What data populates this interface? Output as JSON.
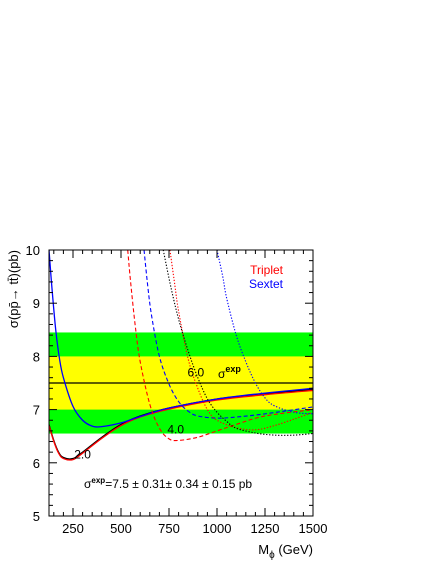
{
  "chart_data": {
    "type": "line",
    "xlabel": "M",
    "xlabel_sub": "ϕ",
    "xlabel_unit": " (GeV)",
    "ylabel": "σ(pp̄→ tt̄)(pb)",
    "xlim": [
      125,
      1500
    ],
    "ylim": [
      5,
      10
    ],
    "x_ticks": [
      250,
      500,
      750,
      1000,
      1250,
      1500
    ],
    "y_ticks": [
      5,
      6,
      7,
      8,
      9,
      10
    ],
    "grid": false,
    "legend": {
      "placement": "top-right",
      "entries": [
        {
          "label": "Triplet",
          "color": "#ff0000"
        },
        {
          "label": "Sextet",
          "color": "#0000ff"
        }
      ]
    },
    "bands": [
      {
        "from": 6.55,
        "to": 8.45,
        "color": "#00ff00"
      },
      {
        "from": 7.0,
        "to": 8.0,
        "color": "#ffff00"
      }
    ],
    "reference_line": {
      "value": 7.5,
      "color": "#000000",
      "label": "σ",
      "label_sup": "exp"
    },
    "measurement_text": {
      "sigma": "σ",
      "sup": "exp",
      "value": "=7.5 ± 0.31± 0.34 ± 0.15 pb"
    },
    "coupling_labels": [
      {
        "text": "2.0",
        "x": 300,
        "y": 6.08
      },
      {
        "text": "4.0",
        "x": 785,
        "y": 6.55
      },
      {
        "text": "6.0",
        "x": 890,
        "y": 7.62
      }
    ],
    "series": [
      {
        "group": "2.0",
        "color": "#000000",
        "style": "solid",
        "x": [
          125,
          150,
          175,
          200,
          250,
          300,
          400,
          500,
          600,
          750,
          1000,
          1250,
          1500
        ],
        "y": [
          6.72,
          6.42,
          6.2,
          6.1,
          6.08,
          6.2,
          6.48,
          6.72,
          6.88,
          7.03,
          7.2,
          7.3,
          7.38
        ]
      },
      {
        "group": "2.0",
        "color": "#ff0000",
        "style": "solid",
        "x": [
          125,
          150,
          175,
          200,
          250,
          300,
          400,
          500,
          600,
          750,
          1000,
          1250,
          1500
        ],
        "y": [
          6.7,
          6.4,
          6.18,
          6.08,
          6.06,
          6.18,
          6.46,
          6.7,
          6.86,
          7.01,
          7.18,
          7.28,
          7.36
        ]
      },
      {
        "group": "2.0",
        "color": "#0000ff",
        "style": "solid",
        "x": [
          125,
          140,
          160,
          180,
          200,
          250,
          300,
          350,
          400,
          500,
          600,
          750,
          1000,
          1250,
          1500
        ],
        "y": [
          10.0,
          9.3,
          8.5,
          7.95,
          7.6,
          7.06,
          6.8,
          6.69,
          6.68,
          6.75,
          6.87,
          7.03,
          7.2,
          7.31,
          7.4
        ]
      },
      {
        "group": "4.0",
        "color": "#ff0000",
        "style": "dashed",
        "x": [
          535,
          550,
          575,
          600,
          650,
          700,
          750,
          800,
          900,
          1000,
          1100,
          1250,
          1500
        ],
        "y": [
          10.0,
          9.4,
          8.55,
          7.9,
          7.1,
          6.65,
          6.45,
          6.42,
          6.48,
          6.6,
          6.72,
          6.88,
          7.0
        ]
      },
      {
        "group": "4.0",
        "color": "#0000ff",
        "style": "dashed",
        "x": [
          620,
          640,
          660,
          700,
          750,
          800,
          850,
          900,
          1000,
          1100,
          1250,
          1500
        ],
        "y": [
          10.0,
          9.3,
          8.75,
          8.0,
          7.48,
          7.15,
          6.97,
          6.88,
          6.84,
          6.86,
          6.92,
          7.05
        ]
      },
      {
        "group": "6.0",
        "color": "#ff0000",
        "style": "dotted",
        "x": [
          755,
          780,
          800,
          850,
          900,
          950,
          1000,
          1100,
          1200,
          1300,
          1400,
          1500
        ],
        "y": [
          10.0,
          9.35,
          8.85,
          7.95,
          7.4,
          7.0,
          6.8,
          6.66,
          6.62,
          6.7,
          6.82,
          6.95
        ]
      },
      {
        "group": "6.0",
        "color": "#0000ff",
        "style": "dotted",
        "x": [
          1000,
          1030,
          1050,
          1100,
          1150,
          1200,
          1250,
          1300,
          1400,
          1500
        ],
        "y": [
          10.0,
          9.5,
          9.1,
          8.4,
          7.9,
          7.5,
          7.22,
          7.07,
          6.95,
          6.92
        ]
      },
      {
        "group": "6.0",
        "color": "#000000",
        "style": "dotted",
        "x": [
          720,
          760,
          800,
          850,
          900,
          950,
          1000,
          1050,
          1100,
          1200,
          1300,
          1400,
          1500
        ],
        "y": [
          10.0,
          9.3,
          8.7,
          8.1,
          7.6,
          7.2,
          6.95,
          6.78,
          6.65,
          6.56,
          6.52,
          6.52,
          6.55
        ]
      }
    ]
  }
}
